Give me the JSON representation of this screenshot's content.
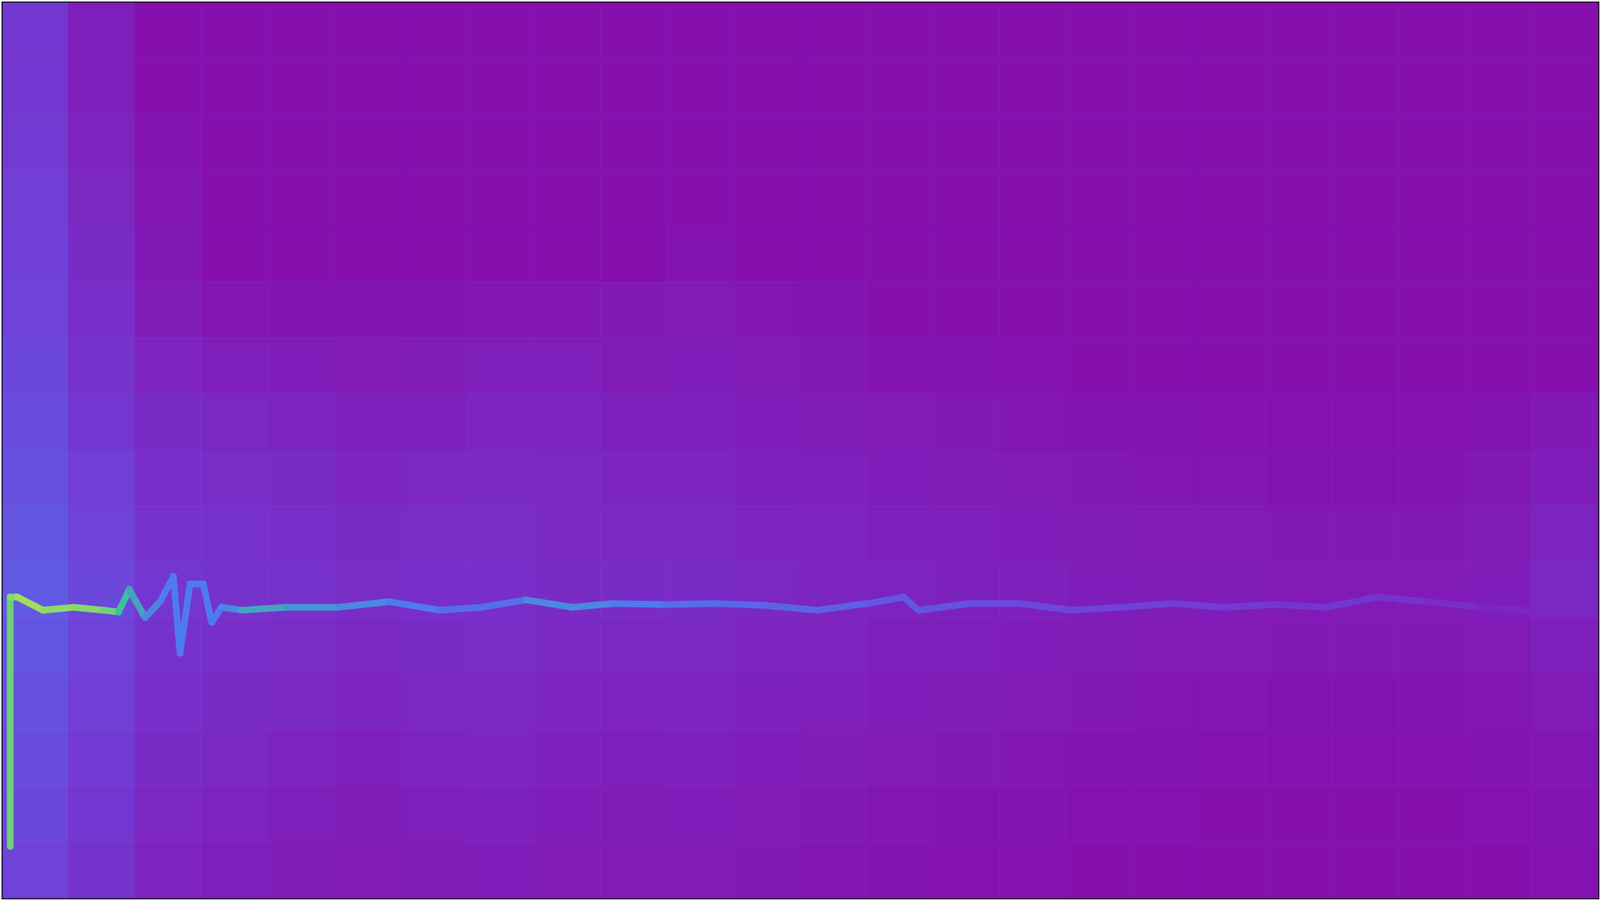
{
  "chart_data": {
    "type": "heatmap",
    "xlim": [
      0,
      96
    ],
    "ylim": [
      0,
      96
    ],
    "xticks": [],
    "yticks": [],
    "tick_labels": false,
    "zlim": [
      0,
      1
    ],
    "xbins": [
      0,
      4,
      8,
      12,
      16,
      20,
      24,
      28,
      32,
      36,
      40,
      44,
      48,
      52,
      56,
      60,
      64,
      68,
      72,
      76,
      80,
      84,
      88,
      92,
      96
    ],
    "ybins": [
      96,
      90,
      84,
      78,
      72,
      66,
      60,
      54,
      48,
      42,
      36,
      30,
      24,
      18,
      12,
      6,
      0
    ],
    "cells": [
      [
        0.2,
        0.08,
        0,
        0,
        0,
        0,
        0,
        0,
        0,
        0,
        0,
        0,
        0,
        0,
        0,
        0,
        0,
        0,
        0,
        0,
        0,
        0,
        0,
        0
      ],
      [
        0.2,
        0.08,
        0,
        0,
        0,
        0,
        0,
        0,
        0,
        0,
        0,
        0,
        0,
        0,
        0,
        0,
        0,
        0,
        0,
        0,
        0,
        0,
        0,
        0
      ],
      [
        0.22,
        0.1,
        0.02,
        0,
        0,
        0,
        0,
        0,
        0,
        0,
        0,
        0,
        0,
        0,
        0,
        0,
        0,
        0,
        0,
        0,
        0,
        0,
        0,
        0
      ],
      [
        0.24,
        0.12,
        0.03,
        0,
        0,
        0,
        0,
        0,
        0,
        0,
        0,
        0,
        0,
        0,
        0,
        0,
        0,
        0,
        0,
        0,
        0,
        0,
        0,
        0
      ],
      [
        0.25,
        0.14,
        0.04,
        0,
        0,
        0,
        0,
        0,
        0,
        0,
        0.02,
        0,
        0,
        0,
        0,
        0,
        0,
        0,
        0,
        0,
        0,
        0,
        0,
        0
      ],
      [
        0.26,
        0.16,
        0.06,
        0.03,
        0.02,
        0.02,
        0.02,
        0.03,
        0.03,
        0.04,
        0.05,
        0.03,
        0.02,
        0,
        0,
        0,
        0,
        0,
        0,
        0,
        0,
        0,
        0,
        0
      ],
      [
        0.28,
        0.18,
        0.1,
        0.08,
        0.07,
        0.05,
        0.06,
        0.08,
        0.08,
        0.06,
        0.07,
        0.05,
        0.04,
        0.02,
        0.02,
        0.01,
        0,
        0,
        0,
        0,
        0,
        0,
        0,
        0
      ],
      [
        0.3,
        0.2,
        0.14,
        0.12,
        0.1,
        0.08,
        0.09,
        0.11,
        0.11,
        0.09,
        0.09,
        0.07,
        0.06,
        0.05,
        0.04,
        0.03,
        0.02,
        0.02,
        0.01,
        0.01,
        0.01,
        0.01,
        0.02,
        0.04
      ],
      [
        0.32,
        0.24,
        0.16,
        0.15,
        0.14,
        0.11,
        0.12,
        0.13,
        0.12,
        0.11,
        0.11,
        0.09,
        0.08,
        0.07,
        0.06,
        0.05,
        0.04,
        0.03,
        0.03,
        0.02,
        0.02,
        0.02,
        0.04,
        0.07
      ],
      [
        0.34,
        0.26,
        0.18,
        0.17,
        0.16,
        0.14,
        0.15,
        0.15,
        0.13,
        0.13,
        0.13,
        0.11,
        0.1,
        0.09,
        0.08,
        0.07,
        0.06,
        0.05,
        0.05,
        0.04,
        0.04,
        0.04,
        0.06,
        0.1
      ],
      [
        0.36,
        0.28,
        0.2,
        0.18,
        0.17,
        0.15,
        0.16,
        0.16,
        0.14,
        0.14,
        0.14,
        0.12,
        0.11,
        0.1,
        0.09,
        0.08,
        0.07,
        0.06,
        0.06,
        0.05,
        0.05,
        0.05,
        0.07,
        0.12
      ],
      [
        0.34,
        0.26,
        0.18,
        0.16,
        0.15,
        0.13,
        0.14,
        0.15,
        0.13,
        0.12,
        0.13,
        0.11,
        0.1,
        0.09,
        0.08,
        0.07,
        0.06,
        0.05,
        0.05,
        0.04,
        0.04,
        0.04,
        0.05,
        0.08
      ],
      [
        0.32,
        0.24,
        0.16,
        0.14,
        0.13,
        0.11,
        0.12,
        0.13,
        0.11,
        0.1,
        0.11,
        0.09,
        0.08,
        0.07,
        0.06,
        0.05,
        0.04,
        0.03,
        0.03,
        0.02,
        0.02,
        0.02,
        0.03,
        0.05
      ],
      [
        0.3,
        0.22,
        0.14,
        0.12,
        0.1,
        0.08,
        0.1,
        0.11,
        0.09,
        0.08,
        0.09,
        0.07,
        0.06,
        0.05,
        0.04,
        0.03,
        0.02,
        0.02,
        0.01,
        0.01,
        0.01,
        0.01,
        0.02,
        0.03
      ],
      [
        0.28,
        0.2,
        0.12,
        0.1,
        0.08,
        0.06,
        0.08,
        0.09,
        0.07,
        0.06,
        0.07,
        0.05,
        0.04,
        0.03,
        0.02,
        0.02,
        0.01,
        0.01,
        0,
        0,
        0,
        0,
        0.01,
        0.02
      ],
      [
        0.26,
        0.18,
        0.1,
        0.08,
        0.06,
        0.05,
        0.06,
        0.07,
        0.05,
        0.05,
        0.05,
        0.04,
        0.03,
        0.02,
        0.01,
        0.01,
        0,
        0,
        0,
        0,
        0,
        0,
        0,
        0.01
      ]
    ],
    "trace": {
      "type": "line",
      "x": [
        0.49,
        0.49,
        0.92,
        2.45,
        4.3,
        6.1,
        7.0,
        7.65,
        8.6,
        9.5,
        10.3,
        10.7,
        11.3,
        12.1,
        12.6,
        13.2,
        14.4,
        17.1,
        20.2,
        23.3,
        26.3,
        28.8,
        31.5,
        34.3,
        36.7,
        39.8,
        42.9,
        45.9,
        49.0,
        52.0,
        54.2,
        55.1,
        58.2,
        61.2,
        64.3,
        67.3,
        70.4,
        73.5,
        76.5,
        79.6,
        82.7,
        85.7,
        88.8,
        93.1
      ],
      "y": [
        5.6,
        32.3,
        32.3,
        30.9,
        31.2,
        30.9,
        30.7,
        33.1,
        30.1,
        31.8,
        34.5,
        26.3,
        33.7,
        33.7,
        29.6,
        31.2,
        30.9,
        31.2,
        31.2,
        31.8,
        30.9,
        31.2,
        32.0,
        31.2,
        31.6,
        31.5,
        31.6,
        31.4,
        30.9,
        31.6,
        32.3,
        30.9,
        31.6,
        31.6,
        30.9,
        31.2,
        31.6,
        31.2,
        31.5,
        31.2,
        32.3,
        31.8,
        31.2,
        30.7
      ],
      "values": [
        0.85,
        0.9,
        0.95,
        0.92,
        0.9,
        0.85,
        0.75,
        0.65,
        0.55,
        0.5,
        0.5,
        0.5,
        0.5,
        0.5,
        0.5,
        0.55,
        0.65,
        0.6,
        0.55,
        0.5,
        0.45,
        0.45,
        0.55,
        0.55,
        0.5,
        0.45,
        0.42,
        0.4,
        0.38,
        0.35,
        0.35,
        0.33,
        0.3,
        0.28,
        0.26,
        0.25,
        0.23,
        0.22,
        0.2,
        0.2,
        0.18,
        0.15,
        0.12,
        0.1
      ]
    }
  }
}
